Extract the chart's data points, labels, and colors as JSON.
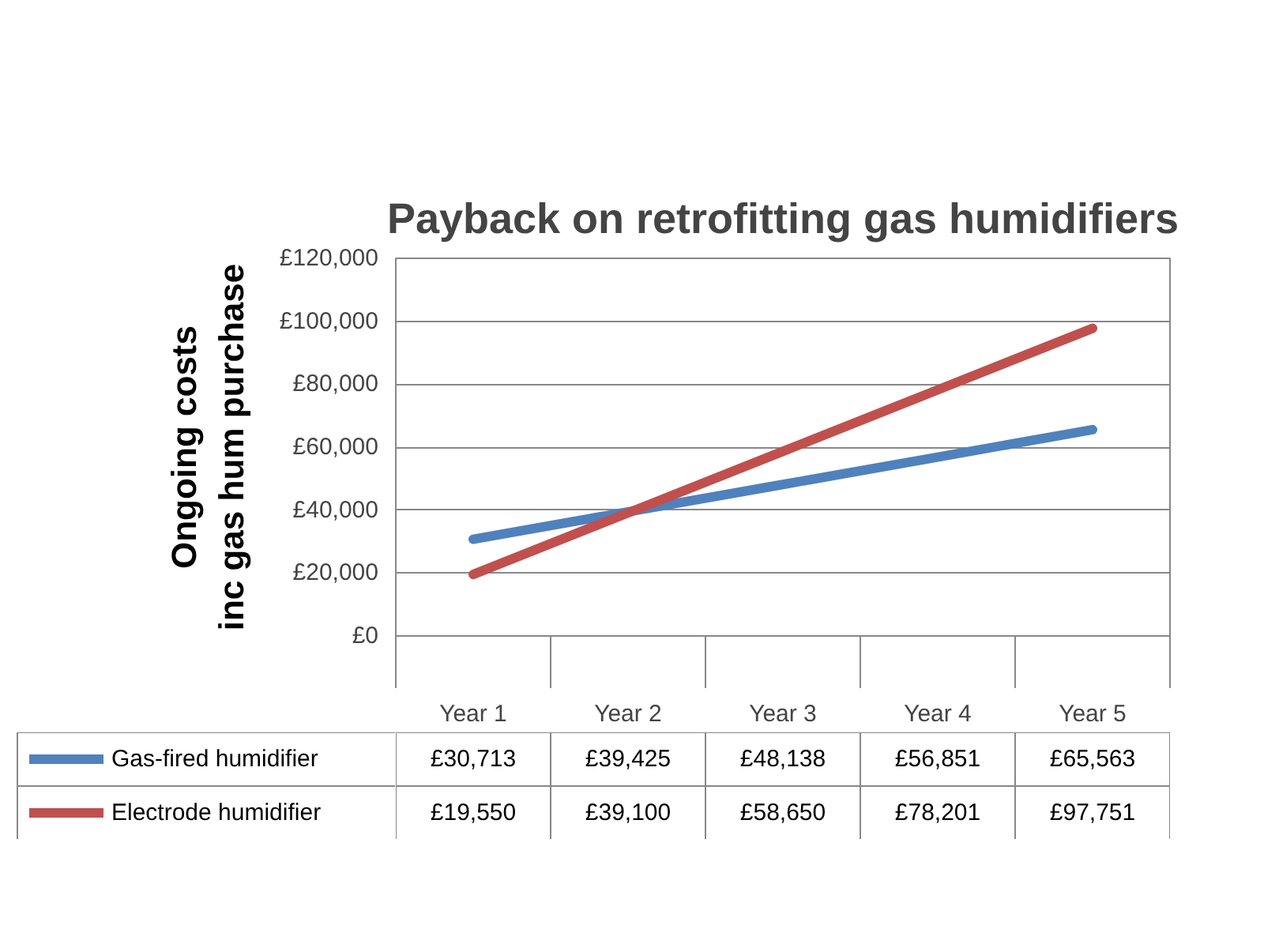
{
  "chart_data": {
    "type": "line",
    "title": "Payback on retrofitting gas humidifiers",
    "ylabel": "Ongoing costs\ninc gas hum purchase",
    "categories": [
      "Year 1",
      "Year 2",
      "Year 3",
      "Year 4",
      "Year 5"
    ],
    "series": [
      {
        "name": "Gas-fired humidifier",
        "color": "#4f81bd",
        "values": [
          30713,
          39425,
          48138,
          56851,
          65563
        ],
        "value_labels": [
          "£30,713",
          "£39,425",
          "£48,138",
          "£56,851",
          "£65,563"
        ]
      },
      {
        "name": "Electrode humidifier",
        "color": "#c0504d",
        "values": [
          19550,
          39100,
          58650,
          78201,
          97751
        ],
        "value_labels": [
          "£19,550",
          "£39,100",
          "£58,650",
          "£78,201",
          "£97,751"
        ]
      }
    ],
    "ylim": [
      0,
      120000
    ],
    "yticks": [
      {
        "value": 0,
        "label": "£0"
      },
      {
        "value": 20000,
        "label": "£20,000"
      },
      {
        "value": 40000,
        "label": "£40,000"
      },
      {
        "value": 60000,
        "label": "£60,000"
      },
      {
        "value": 80000,
        "label": "£80,000"
      },
      {
        "value": 100000,
        "label": "£100,000"
      },
      {
        "value": 120000,
        "label": "£120,000"
      }
    ],
    "grid": "y",
    "legend": "bottom"
  }
}
